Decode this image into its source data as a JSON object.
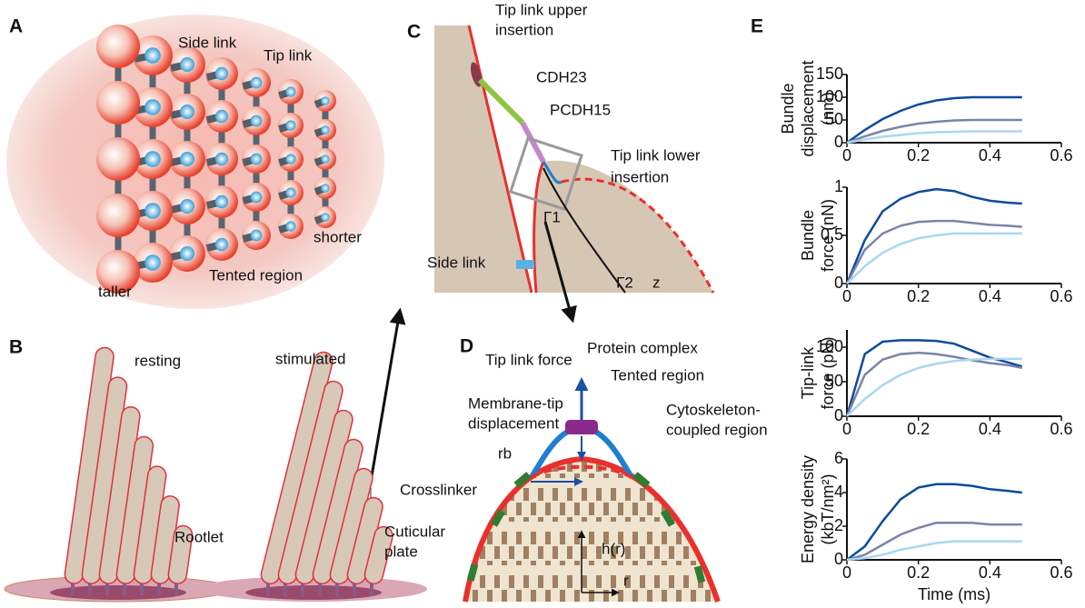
{
  "diagram": {
    "panel_a": {
      "letter": "A",
      "side_link": "Side link",
      "tip_link": "Tip link",
      "taller": "taller",
      "tented_region": "Tented region",
      "shorter": "shorter"
    },
    "panel_b": {
      "letter": "B",
      "resting": "resting",
      "stimulated": "stimulated",
      "rootlet": "Rootlet",
      "cuticular_plate": [
        "Cuticular",
        "plate"
      ]
    },
    "panel_c": {
      "letter": "C",
      "upper_insertion": [
        "Tip link upper",
        "insertion"
      ],
      "cdh23": "CDH23",
      "pcdh15": "PCDH15",
      "lower_insertion": [
        "Tip link lower",
        "insertion"
      ],
      "gamma1": "Γ1",
      "side_link": "Side link",
      "gamma2": "Γ2",
      "z": "z"
    },
    "panel_d": {
      "letter": "D",
      "tip_link_force": "Tip link force",
      "protein_complex": "Protein complex",
      "tented_region": "Tented region",
      "membrane_tip": [
        "Membrane-tip",
        "displacement"
      ],
      "cytoskeleton": [
        "Cytoskeleton-",
        "coupled region"
      ],
      "rb": "rb",
      "crosslinker": "Crosslinker",
      "hr": "h(r)",
      "r": "r"
    },
    "panel_e": {
      "letter": "E"
    }
  },
  "chart_data": [
    {
      "type": "line",
      "ylabel": [
        "Bundle",
        "displacement",
        "(nm)"
      ],
      "x": [
        0,
        0.05,
        0.1,
        0.15,
        0.2,
        0.25,
        0.3,
        0.35,
        0.4,
        0.45,
        0.49
      ],
      "xlim": [
        0,
        0.6
      ],
      "xticks": [
        0,
        0.2,
        0.4,
        0.6
      ],
      "ylim": [
        0,
        150
      ],
      "yticks": [
        0,
        50,
        100,
        150
      ],
      "series": [
        {
          "color": "#0d4a9e",
          "values": [
            0,
            28,
            52,
            70,
            84,
            93,
            98,
            100,
            100,
            100,
            100
          ]
        },
        {
          "color": "#7a84a8",
          "values": [
            0,
            14,
            26,
            35,
            42,
            46,
            49,
            50,
            50,
            50,
            50
          ]
        },
        {
          "color": "#a8d8f0",
          "values": [
            0,
            7,
            13,
            17,
            21,
            23,
            24,
            25,
            25,
            25,
            25
          ]
        }
      ]
    },
    {
      "type": "line",
      "ylabel": [
        "Bundle",
        "force (nN)"
      ],
      "x": [
        0,
        0.05,
        0.1,
        0.15,
        0.2,
        0.25,
        0.3,
        0.35,
        0.4,
        0.45,
        0.49
      ],
      "xlim": [
        0,
        0.6
      ],
      "xticks": [
        0,
        0.2,
        0.4,
        0.6
      ],
      "ylim": [
        0,
        1
      ],
      "yticks": [
        0,
        0.5,
        1
      ],
      "series": [
        {
          "color": "#0d4a9e",
          "values": [
            0,
            0.45,
            0.75,
            0.88,
            0.95,
            0.98,
            0.96,
            0.9,
            0.86,
            0.84,
            0.83
          ]
        },
        {
          "color": "#7a84a8",
          "values": [
            0,
            0.35,
            0.52,
            0.6,
            0.64,
            0.65,
            0.65,
            0.63,
            0.61,
            0.6,
            0.59
          ]
        },
        {
          "color": "#a8d8f0",
          "values": [
            0,
            0.18,
            0.32,
            0.41,
            0.47,
            0.5,
            0.52,
            0.52,
            0.52,
            0.52,
            0.52
          ]
        }
      ]
    },
    {
      "type": "line",
      "ylabel": [
        "Tip-link",
        "force (pN)"
      ],
      "x": [
        0,
        0.05,
        0.1,
        0.15,
        0.2,
        0.25,
        0.3,
        0.35,
        0.4,
        0.45,
        0.49
      ],
      "xlim": [
        0,
        0.6
      ],
      "xticks": [
        0,
        0.2,
        0.4,
        0.6
      ],
      "ylim": [
        0,
        125
      ],
      "yticks": [
        0,
        50,
        100
      ],
      "series": [
        {
          "color": "#0d4a9e",
          "values": [
            0,
            90,
            108,
            110,
            110,
            109,
            105,
            95,
            85,
            78,
            72
          ]
        },
        {
          "color": "#7a84a8",
          "values": [
            0,
            60,
            82,
            90,
            92,
            90,
            86,
            81,
            77,
            74,
            70
          ]
        },
        {
          "color": "#a8d8f0",
          "values": [
            0,
            25,
            45,
            60,
            70,
            76,
            80,
            82,
            83,
            83,
            83
          ]
        }
      ]
    },
    {
      "type": "line",
      "ylabel": [
        "Energy density",
        "(kbT/nm²)"
      ],
      "xlabel": "Time (ms)",
      "x": [
        0,
        0.05,
        0.1,
        0.15,
        0.2,
        0.25,
        0.3,
        0.35,
        0.4,
        0.45,
        0.49
      ],
      "xlim": [
        0,
        0.6
      ],
      "xticks": [
        0,
        0.2,
        0.4,
        0.6
      ],
      "ylim": [
        0,
        6
      ],
      "yticks": [
        0,
        2,
        4,
        6
      ],
      "series": [
        {
          "color": "#0d4a9e",
          "values": [
            0,
            0.8,
            2.3,
            3.6,
            4.3,
            4.5,
            4.5,
            4.4,
            4.2,
            4.1,
            4.0
          ]
        },
        {
          "color": "#7a84a8",
          "values": [
            0,
            0.3,
            0.9,
            1.5,
            1.9,
            2.2,
            2.2,
            2.2,
            2.1,
            2.1,
            2.1
          ]
        },
        {
          "color": "#a8d8f0",
          "values": [
            0,
            0.1,
            0.3,
            0.6,
            0.8,
            1.0,
            1.1,
            1.1,
            1.1,
            1.1,
            1.1
          ]
        }
      ]
    }
  ]
}
